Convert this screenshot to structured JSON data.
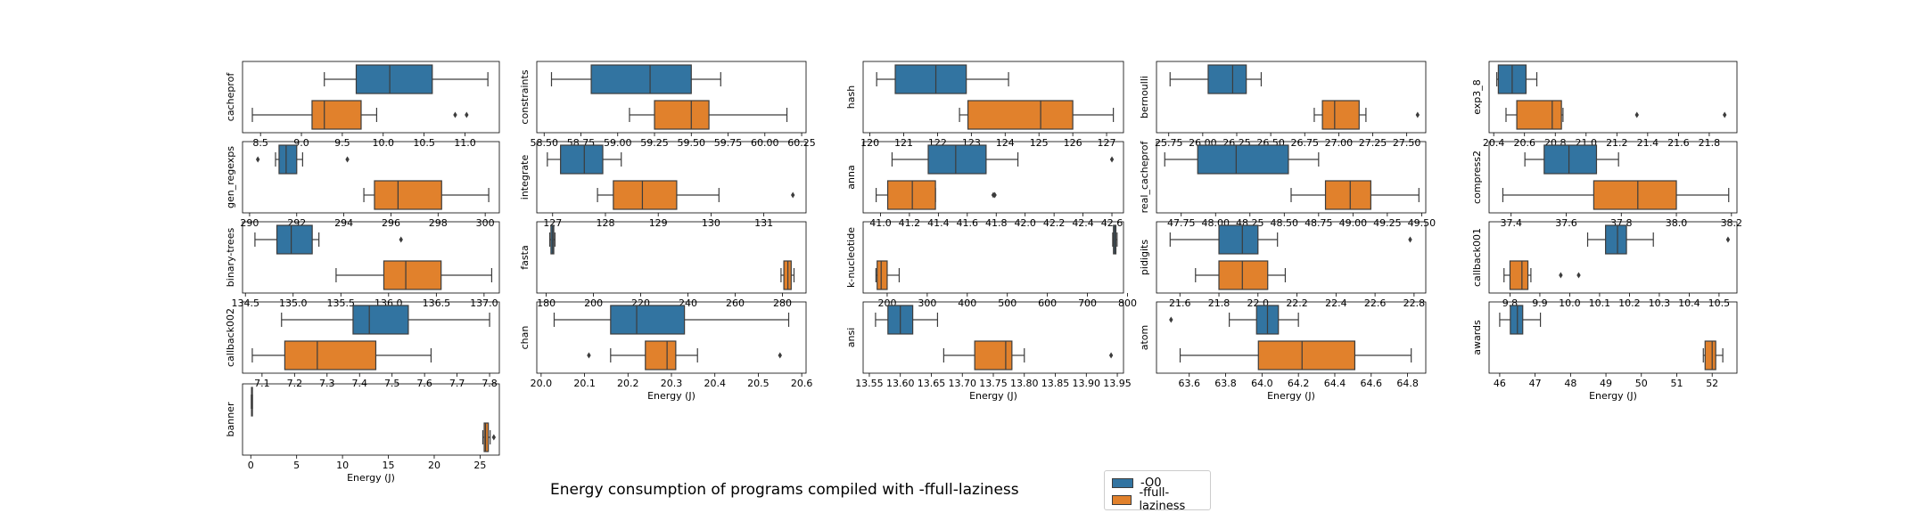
{
  "figure": {
    "title": "Energy consumption of programs compiled with -ffull-laziness",
    "legend": [
      {
        "label": "-O0",
        "color": "#3274a1"
      },
      {
        "label": "-ffull-laziness",
        "color": "#e1812c"
      }
    ]
  },
  "chart_data": [
    {
      "type": "boxplot",
      "ylabel": "cacheprof",
      "xlabel": "",
      "xlim": [
        8.28,
        11.42
      ],
      "ticks": [
        8.5,
        9.0,
        9.5,
        10.0,
        10.5,
        11.0
      ],
      "tick_labels": [
        "8.5",
        "9.0",
        "9.5",
        "10.0",
        "10.5",
        "11.0"
      ],
      "series": [
        {
          "name": "-O0",
          "whislo": 9.28,
          "q1": 9.67,
          "med": 10.08,
          "q3": 10.6,
          "whishi": 11.28,
          "fliers": []
        },
        {
          "name": "-ffull-laziness",
          "whislo": 8.4,
          "q1": 9.13,
          "med": 9.28,
          "q3": 9.73,
          "whishi": 9.92,
          "fliers": [
            10.88,
            11.02
          ]
        }
      ]
    },
    {
      "type": "boxplot",
      "ylabel": "constraints",
      "xlabel": "",
      "xlim": [
        58.45,
        60.28
      ],
      "ticks": [
        58.5,
        58.75,
        59.0,
        59.25,
        59.5,
        59.75,
        60.0,
        60.25
      ],
      "tick_labels": [
        "58.50",
        "58.75",
        "59.00",
        "59.25",
        "59.50",
        "59.75",
        "60.00",
        "60.25"
      ],
      "series": [
        {
          "name": "-O0",
          "whislo": 58.55,
          "q1": 58.82,
          "med": 59.22,
          "q3": 59.5,
          "whishi": 59.7,
          "fliers": []
        },
        {
          "name": "-ffull-laziness",
          "whislo": 59.08,
          "q1": 59.25,
          "med": 59.5,
          "q3": 59.62,
          "whishi": 60.15,
          "fliers": []
        }
      ]
    },
    {
      "type": "boxplot",
      "ylabel": "hash",
      "xlabel": "",
      "xlim": [
        119.8,
        127.5
      ],
      "ticks": [
        120,
        121,
        122,
        123,
        124,
        125,
        126,
        127
      ],
      "tick_labels": [
        "120",
        "121",
        "122",
        "123",
        "124",
        "125",
        "126",
        "127"
      ],
      "series": [
        {
          "name": "-O0",
          "whislo": 120.2,
          "q1": 120.75,
          "med": 121.95,
          "q3": 122.85,
          "whishi": 124.1,
          "fliers": []
        },
        {
          "name": "-ffull-laziness",
          "whislo": 122.65,
          "q1": 122.9,
          "med": 125.05,
          "q3": 126.0,
          "whishi": 127.2,
          "fliers": []
        }
      ]
    },
    {
      "type": "boxplot",
      "ylabel": "bernoulli",
      "xlabel": "",
      "xlim": [
        25.66,
        27.64
      ],
      "ticks": [
        25.75,
        26.0,
        26.25,
        26.5,
        26.75,
        27.0,
        27.25,
        27.5
      ],
      "tick_labels": [
        "25.75",
        "26.00",
        "26.25",
        "26.50",
        "26.75",
        "27.00",
        "27.25",
        "27.50"
      ],
      "series": [
        {
          "name": "-O0",
          "whislo": 25.76,
          "q1": 26.04,
          "med": 26.22,
          "q3": 26.32,
          "whishi": 26.43,
          "fliers": []
        },
        {
          "name": "-ffull-laziness",
          "whislo": 26.82,
          "q1": 26.88,
          "med": 26.97,
          "q3": 27.15,
          "whishi": 27.2,
          "fliers": [
            27.58
          ]
        }
      ]
    },
    {
      "type": "boxplot",
      "ylabel": "exp3_8",
      "xlabel": "",
      "xlim": [
        20.37,
        21.98
      ],
      "ticks": [
        20.4,
        20.6,
        20.8,
        21.0,
        21.2,
        21.4,
        21.6,
        21.8
      ],
      "tick_labels": [
        "20.4",
        "20.6",
        "20.8",
        "21.0",
        "21.2",
        "21.4",
        "21.6",
        "21.8"
      ],
      "series": [
        {
          "name": "-O0",
          "whislo": 20.42,
          "q1": 20.43,
          "med": 20.52,
          "q3": 20.61,
          "whishi": 20.68,
          "fliers": []
        },
        {
          "name": "-ffull-laziness",
          "whislo": 20.48,
          "q1": 20.55,
          "med": 20.78,
          "q3": 20.84,
          "whishi": 20.85,
          "fliers": [
            21.33,
            21.9
          ]
        }
      ]
    },
    {
      "type": "boxplot",
      "ylabel": "gen_regexps",
      "xlabel": "",
      "xlim": [
        289.7,
        300.6
      ],
      "ticks": [
        290,
        292,
        294,
        296,
        298,
        300
      ],
      "tick_labels": [
        "290",
        "292",
        "294",
        "296",
        "298",
        "300"
      ],
      "series": [
        {
          "name": "-O0",
          "whislo": 291.1,
          "q1": 291.25,
          "med": 291.55,
          "q3": 292.0,
          "whishi": 292.25,
          "fliers": [
            290.35,
            294.15
          ]
        },
        {
          "name": "-ffull-laziness",
          "whislo": 294.85,
          "q1": 295.3,
          "med": 296.3,
          "q3": 298.15,
          "whishi": 300.15,
          "fliers": []
        }
      ]
    },
    {
      "type": "boxplot",
      "ylabel": "integrate",
      "xlabel": "",
      "xlim": [
        126.7,
        131.8
      ],
      "ticks": [
        127,
        128,
        129,
        130,
        131
      ],
      "tick_labels": [
        "127",
        "128",
        "129",
        "130",
        "131"
      ],
      "series": [
        {
          "name": "-O0",
          "whislo": 126.9,
          "q1": 127.15,
          "med": 127.6,
          "q3": 127.95,
          "whishi": 128.3,
          "fliers": []
        },
        {
          "name": "-ffull-laziness",
          "whislo": 127.85,
          "q1": 128.15,
          "med": 128.7,
          "q3": 129.35,
          "whishi": 130.15,
          "fliers": [
            131.55
          ]
        }
      ]
    },
    {
      "type": "boxplot",
      "ylabel": "anna",
      "xlabel": "",
      "xlim": [
        40.88,
        42.68
      ],
      "ticks": [
        41.0,
        41.2,
        41.4,
        41.6,
        41.8,
        42.0,
        42.2,
        42.4,
        42.6
      ],
      "tick_labels": [
        "41.0",
        "41.2",
        "41.4",
        "41.6",
        "41.8",
        "42.0",
        "42.2",
        "42.4",
        "42.6"
      ],
      "series": [
        {
          "name": "-O0",
          "whislo": 41.08,
          "q1": 41.33,
          "med": 41.52,
          "q3": 41.73,
          "whishi": 41.95,
          "fliers": [
            42.6
          ]
        },
        {
          "name": "-ffull-laziness",
          "whislo": 40.97,
          "q1": 41.05,
          "med": 41.22,
          "q3": 41.38,
          "whishi": 41.38,
          "fliers": [
            41.78,
            41.79
          ]
        }
      ]
    },
    {
      "type": "boxplot",
      "ylabel": "real_cacheprof",
      "xlabel": "",
      "xlim": [
        47.57,
        49.53
      ],
      "ticks": [
        47.75,
        48.0,
        48.25,
        48.5,
        48.75,
        49.0,
        49.25,
        49.5
      ],
      "tick_labels": [
        "47.75",
        "48.00",
        "48.25",
        "48.50",
        "48.75",
        "49.00",
        "49.25",
        "49.50"
      ],
      "series": [
        {
          "name": "-O0",
          "whislo": 47.63,
          "q1": 47.87,
          "med": 48.15,
          "q3": 48.53,
          "whishi": 48.75,
          "fliers": []
        },
        {
          "name": "-ffull-laziness",
          "whislo": 48.55,
          "q1": 48.8,
          "med": 48.98,
          "q3": 49.13,
          "whishi": 49.48,
          "fliers": []
        }
      ]
    },
    {
      "type": "boxplot",
      "ylabel": "compress2",
      "xlabel": "",
      "xlim": [
        37.32,
        38.22
      ],
      "ticks": [
        37.4,
        37.6,
        37.8,
        38.0,
        38.2
      ],
      "tick_labels": [
        "37.4",
        "37.6",
        "37.8",
        "38.0",
        "38.2"
      ],
      "series": [
        {
          "name": "-O0",
          "whislo": 37.45,
          "q1": 37.52,
          "med": 37.61,
          "q3": 37.71,
          "whishi": 37.79,
          "fliers": []
        },
        {
          "name": "-ffull-laziness",
          "whislo": 37.37,
          "q1": 37.7,
          "med": 37.86,
          "q3": 38.0,
          "whishi": 38.19,
          "fliers": []
        }
      ]
    },
    {
      "type": "boxplot",
      "ylabel": "binary-trees",
      "xlabel": "",
      "xlim": [
        134.47,
        137.16
      ],
      "ticks": [
        134.5,
        135.0,
        135.5,
        136.0,
        136.5,
        137.0
      ],
      "tick_labels": [
        "134.5",
        "135.0",
        "135.5",
        "136.0",
        "136.5",
        "137.0"
      ],
      "series": [
        {
          "name": "-O0",
          "whislo": 134.6,
          "q1": 134.83,
          "med": 134.98,
          "q3": 135.2,
          "whishi": 135.27,
          "fliers": [
            136.13
          ]
        },
        {
          "name": "-ffull-laziness",
          "whislo": 135.45,
          "q1": 135.95,
          "med": 136.18,
          "q3": 136.55,
          "whishi": 137.08,
          "fliers": []
        }
      ]
    },
    {
      "type": "boxplot",
      "ylabel": "fasta",
      "xlabel": "",
      "xlim": [
        176,
        290
      ],
      "ticks": [
        180,
        200,
        220,
        240,
        260,
        280
      ],
      "tick_labels": [
        "180",
        "200",
        "220",
        "240",
        "260",
        "280"
      ],
      "series": [
        {
          "name": "-O0",
          "whislo": 181.5,
          "q1": 182,
          "med": 182.7,
          "q3": 183.2,
          "whishi": 183.7,
          "fliers": []
        },
        {
          "name": "-ffull-laziness",
          "whislo": 279.4,
          "q1": 280.6,
          "med": 282.3,
          "q3": 283.7,
          "whishi": 284.9,
          "fliers": []
        }
      ]
    },
    {
      "type": "boxplot",
      "ylabel": "k-nucleotide",
      "xlabel": "",
      "xlim": [
        140,
        790
      ],
      "ticks": [
        200,
        300,
        400,
        500,
        600,
        700,
        800
      ],
      "tick_labels": [
        "200",
        "300",
        "400",
        "500",
        "600",
        "700",
        "800"
      ],
      "series": [
        {
          "name": "-O0",
          "whislo": 763,
          "q1": 765,
          "med": 768,
          "q3": 771,
          "whishi": 774,
          "fliers": []
        },
        {
          "name": "-ffull-laziness",
          "whislo": 172,
          "q1": 175,
          "med": 185,
          "q3": 200,
          "whishi": 230,
          "fliers": []
        }
      ]
    },
    {
      "type": "boxplot",
      "ylabel": "pidigits",
      "xlabel": "",
      "xlim": [
        21.48,
        22.86
      ],
      "ticks": [
        21.6,
        21.8,
        22.0,
        22.2,
        22.4,
        22.6,
        22.8
      ],
      "tick_labels": [
        "21.6",
        "21.8",
        "22.0",
        "22.2",
        "22.4",
        "22.6",
        "22.8"
      ],
      "series": [
        {
          "name": "-O0",
          "whislo": 21.55,
          "q1": 21.8,
          "med": 21.92,
          "q3": 22.0,
          "whishi": 22.1,
          "fliers": [
            22.78
          ]
        },
        {
          "name": "-ffull-laziness",
          "whislo": 21.68,
          "q1": 21.8,
          "med": 21.92,
          "q3": 22.05,
          "whishi": 22.14,
          "fliers": []
        }
      ]
    },
    {
      "type": "boxplot",
      "ylabel": "callback001",
      "xlabel": "",
      "xlim": [
        9.73,
        10.56
      ],
      "ticks": [
        9.8,
        9.9,
        10.0,
        10.1,
        10.2,
        10.3,
        10.4,
        10.5
      ],
      "tick_labels": [
        "9.8",
        "9.9",
        "10.0",
        "10.1",
        "10.2",
        "10.3",
        "10.4",
        "10.5"
      ],
      "series": [
        {
          "name": "-O0",
          "whislo": 10.06,
          "q1": 10.12,
          "med": 10.16,
          "q3": 10.19,
          "whishi": 10.28,
          "fliers": [
            10.53
          ]
        },
        {
          "name": "-ffull-laziness",
          "whislo": 9.78,
          "q1": 9.8,
          "med": 9.84,
          "q3": 9.86,
          "whishi": 9.87,
          "fliers": [
            9.97,
            10.03
          ]
        }
      ]
    },
    {
      "type": "boxplot",
      "ylabel": "callback002",
      "xlabel": "",
      "xlim": [
        7.04,
        7.83
      ],
      "ticks": [
        7.1,
        7.2,
        7.3,
        7.4,
        7.5,
        7.6,
        7.7,
        7.8
      ],
      "tick_labels": [
        "7.1",
        "7.2",
        "7.3",
        "7.4",
        "7.5",
        "7.6",
        "7.7",
        "7.8"
      ],
      "series": [
        {
          "name": "-O0",
          "whislo": 7.16,
          "q1": 7.38,
          "med": 7.43,
          "q3": 7.55,
          "whishi": 7.8,
          "fliers": []
        },
        {
          "name": "-ffull-laziness",
          "whislo": 7.07,
          "q1": 7.17,
          "med": 7.27,
          "q3": 7.45,
          "whishi": 7.62,
          "fliers": []
        }
      ]
    },
    {
      "type": "boxplot",
      "ylabel": "chan",
      "xlabel": "Energy (J)",
      "xlim": [
        19.99,
        20.61
      ],
      "ticks": [
        20.0,
        20.1,
        20.2,
        20.3,
        20.4,
        20.5,
        20.6
      ],
      "tick_labels": [
        "20.0",
        "20.1",
        "20.2",
        "20.3",
        "20.4",
        "20.5",
        "20.6"
      ],
      "series": [
        {
          "name": "-O0",
          "whislo": 20.03,
          "q1": 20.16,
          "med": 20.22,
          "q3": 20.33,
          "whishi": 20.57,
          "fliers": []
        },
        {
          "name": "-ffull-laziness",
          "whislo": 20.16,
          "q1": 20.24,
          "med": 20.29,
          "q3": 20.31,
          "whishi": 20.36,
          "fliers": [
            20.11,
            20.55
          ]
        }
      ]
    },
    {
      "type": "boxplot",
      "ylabel": "ansi",
      "xlabel": "Energy (J)",
      "xlim": [
        13.54,
        13.96
      ],
      "ticks": [
        13.55,
        13.6,
        13.65,
        13.7,
        13.75,
        13.8,
        13.85,
        13.9,
        13.95
      ],
      "tick_labels": [
        "13.55",
        "13.60",
        "13.65",
        "13.70",
        "13.75",
        "13.80",
        "13.85",
        "13.90",
        "13.95"
      ],
      "series": [
        {
          "name": "-O0",
          "whislo": 13.56,
          "q1": 13.58,
          "med": 13.6,
          "q3": 13.62,
          "whishi": 13.66,
          "fliers": []
        },
        {
          "name": "-ffull-laziness",
          "whislo": 13.67,
          "q1": 13.72,
          "med": 13.77,
          "q3": 13.78,
          "whishi": 13.8,
          "fliers": [
            13.94
          ]
        }
      ]
    },
    {
      "type": "boxplot",
      "ylabel": "atom",
      "xlabel": "Energy (J)",
      "xlim": [
        63.42,
        64.9
      ],
      "ticks": [
        63.6,
        63.8,
        64.0,
        64.2,
        64.4,
        64.6,
        64.8
      ],
      "tick_labels": [
        "63.6",
        "63.8",
        "64.0",
        "64.2",
        "64.4",
        "64.6",
        "64.8"
      ],
      "series": [
        {
          "name": "-O0",
          "whislo": 63.82,
          "q1": 63.97,
          "med": 64.03,
          "q3": 64.09,
          "whishi": 64.2,
          "fliers": [
            63.5
          ]
        },
        {
          "name": "-ffull-laziness",
          "whislo": 63.55,
          "q1": 63.98,
          "med": 64.22,
          "q3": 64.51,
          "whishi": 64.82,
          "fliers": []
        }
      ]
    },
    {
      "type": "boxplot",
      "ylabel": "awards",
      "xlabel": "Energy (J)",
      "xlim": [
        45.7,
        52.7
      ],
      "ticks": [
        46,
        47,
        48,
        49,
        50,
        51,
        52
      ],
      "tick_labels": [
        "46",
        "47",
        "48",
        "49",
        "50",
        "51",
        "52"
      ],
      "series": [
        {
          "name": "-O0",
          "whislo": 46.0,
          "q1": 46.3,
          "med": 46.5,
          "q3": 46.65,
          "whishi": 47.15,
          "fliers": []
        },
        {
          "name": "-ffull-laziness",
          "whislo": 51.75,
          "q1": 51.8,
          "med": 52.0,
          "q3": 52.1,
          "whishi": 52.3,
          "fliers": []
        }
      ]
    },
    {
      "type": "boxplot",
      "ylabel": "banner",
      "xlabel": "Energy (J)",
      "xlim": [
        -0.9,
        27.1
      ],
      "ticks": [
        0,
        5,
        10,
        15,
        20,
        25
      ],
      "tick_labels": [
        "0",
        "5",
        "10",
        "15",
        "20",
        "25"
      ],
      "series": [
        {
          "name": "-O0",
          "whislo": 0.05,
          "q1": 0.08,
          "med": 0.12,
          "q3": 0.15,
          "whishi": 0.18,
          "fliers": []
        },
        {
          "name": "-ffull-laziness",
          "whislo": 25.3,
          "q1": 25.45,
          "med": 25.6,
          "q3": 25.9,
          "whishi": 26.1,
          "fliers": [
            26.5
          ]
        }
      ]
    }
  ]
}
